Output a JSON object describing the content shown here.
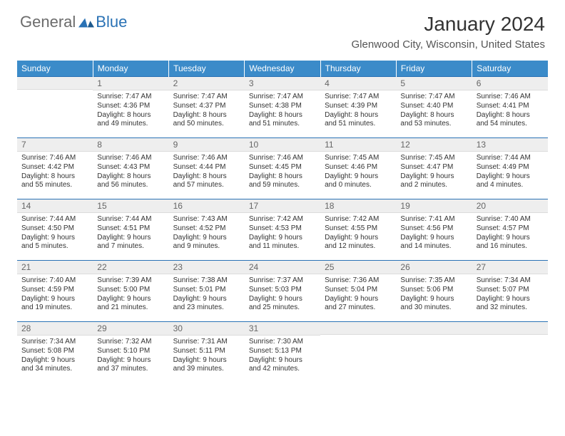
{
  "logo": {
    "general": "General",
    "blue": "Blue"
  },
  "title": "January 2024",
  "location": "Glenwood City, Wisconsin, United States",
  "colors": {
    "header_bg": "#3b8bc9",
    "header_text": "#ffffff",
    "border": "#2a72b5",
    "daynum_bg": "#eeeeee",
    "text": "#333333"
  },
  "weekdays": [
    "Sunday",
    "Monday",
    "Tuesday",
    "Wednesday",
    "Thursday",
    "Friday",
    "Saturday"
  ],
  "layout": {
    "first_weekday_index": 1,
    "rows": 5,
    "cols": 7
  },
  "days": {
    "1": {
      "sunrise": "7:47 AM",
      "sunset": "4:36 PM",
      "daylight": "8 hours and 49 minutes."
    },
    "2": {
      "sunrise": "7:47 AM",
      "sunset": "4:37 PM",
      "daylight": "8 hours and 50 minutes."
    },
    "3": {
      "sunrise": "7:47 AM",
      "sunset": "4:38 PM",
      "daylight": "8 hours and 51 minutes."
    },
    "4": {
      "sunrise": "7:47 AM",
      "sunset": "4:39 PM",
      "daylight": "8 hours and 51 minutes."
    },
    "5": {
      "sunrise": "7:47 AM",
      "sunset": "4:40 PM",
      "daylight": "8 hours and 53 minutes."
    },
    "6": {
      "sunrise": "7:46 AM",
      "sunset": "4:41 PM",
      "daylight": "8 hours and 54 minutes."
    },
    "7": {
      "sunrise": "7:46 AM",
      "sunset": "4:42 PM",
      "daylight": "8 hours and 55 minutes."
    },
    "8": {
      "sunrise": "7:46 AM",
      "sunset": "4:43 PM",
      "daylight": "8 hours and 56 minutes."
    },
    "9": {
      "sunrise": "7:46 AM",
      "sunset": "4:44 PM",
      "daylight": "8 hours and 57 minutes."
    },
    "10": {
      "sunrise": "7:46 AM",
      "sunset": "4:45 PM",
      "daylight": "8 hours and 59 minutes."
    },
    "11": {
      "sunrise": "7:45 AM",
      "sunset": "4:46 PM",
      "daylight": "9 hours and 0 minutes."
    },
    "12": {
      "sunrise": "7:45 AM",
      "sunset": "4:47 PM",
      "daylight": "9 hours and 2 minutes."
    },
    "13": {
      "sunrise": "7:44 AM",
      "sunset": "4:49 PM",
      "daylight": "9 hours and 4 minutes."
    },
    "14": {
      "sunrise": "7:44 AM",
      "sunset": "4:50 PM",
      "daylight": "9 hours and 5 minutes."
    },
    "15": {
      "sunrise": "7:44 AM",
      "sunset": "4:51 PM",
      "daylight": "9 hours and 7 minutes."
    },
    "16": {
      "sunrise": "7:43 AM",
      "sunset": "4:52 PM",
      "daylight": "9 hours and 9 minutes."
    },
    "17": {
      "sunrise": "7:42 AM",
      "sunset": "4:53 PM",
      "daylight": "9 hours and 11 minutes."
    },
    "18": {
      "sunrise": "7:42 AM",
      "sunset": "4:55 PM",
      "daylight": "9 hours and 12 minutes."
    },
    "19": {
      "sunrise": "7:41 AM",
      "sunset": "4:56 PM",
      "daylight": "9 hours and 14 minutes."
    },
    "20": {
      "sunrise": "7:40 AM",
      "sunset": "4:57 PM",
      "daylight": "9 hours and 16 minutes."
    },
    "21": {
      "sunrise": "7:40 AM",
      "sunset": "4:59 PM",
      "daylight": "9 hours and 19 minutes."
    },
    "22": {
      "sunrise": "7:39 AM",
      "sunset": "5:00 PM",
      "daylight": "9 hours and 21 minutes."
    },
    "23": {
      "sunrise": "7:38 AM",
      "sunset": "5:01 PM",
      "daylight": "9 hours and 23 minutes."
    },
    "24": {
      "sunrise": "7:37 AM",
      "sunset": "5:03 PM",
      "daylight": "9 hours and 25 minutes."
    },
    "25": {
      "sunrise": "7:36 AM",
      "sunset": "5:04 PM",
      "daylight": "9 hours and 27 minutes."
    },
    "26": {
      "sunrise": "7:35 AM",
      "sunset": "5:06 PM",
      "daylight": "9 hours and 30 minutes."
    },
    "27": {
      "sunrise": "7:34 AM",
      "sunset": "5:07 PM",
      "daylight": "9 hours and 32 minutes."
    },
    "28": {
      "sunrise": "7:34 AM",
      "sunset": "5:08 PM",
      "daylight": "9 hours and 34 minutes."
    },
    "29": {
      "sunrise": "7:32 AM",
      "sunset": "5:10 PM",
      "daylight": "9 hours and 37 minutes."
    },
    "30": {
      "sunrise": "7:31 AM",
      "sunset": "5:11 PM",
      "daylight": "9 hours and 39 minutes."
    },
    "31": {
      "sunrise": "7:30 AM",
      "sunset": "5:13 PM",
      "daylight": "9 hours and 42 minutes."
    }
  },
  "labels": {
    "sunrise": "Sunrise:",
    "sunset": "Sunset:",
    "daylight": "Daylight:"
  }
}
